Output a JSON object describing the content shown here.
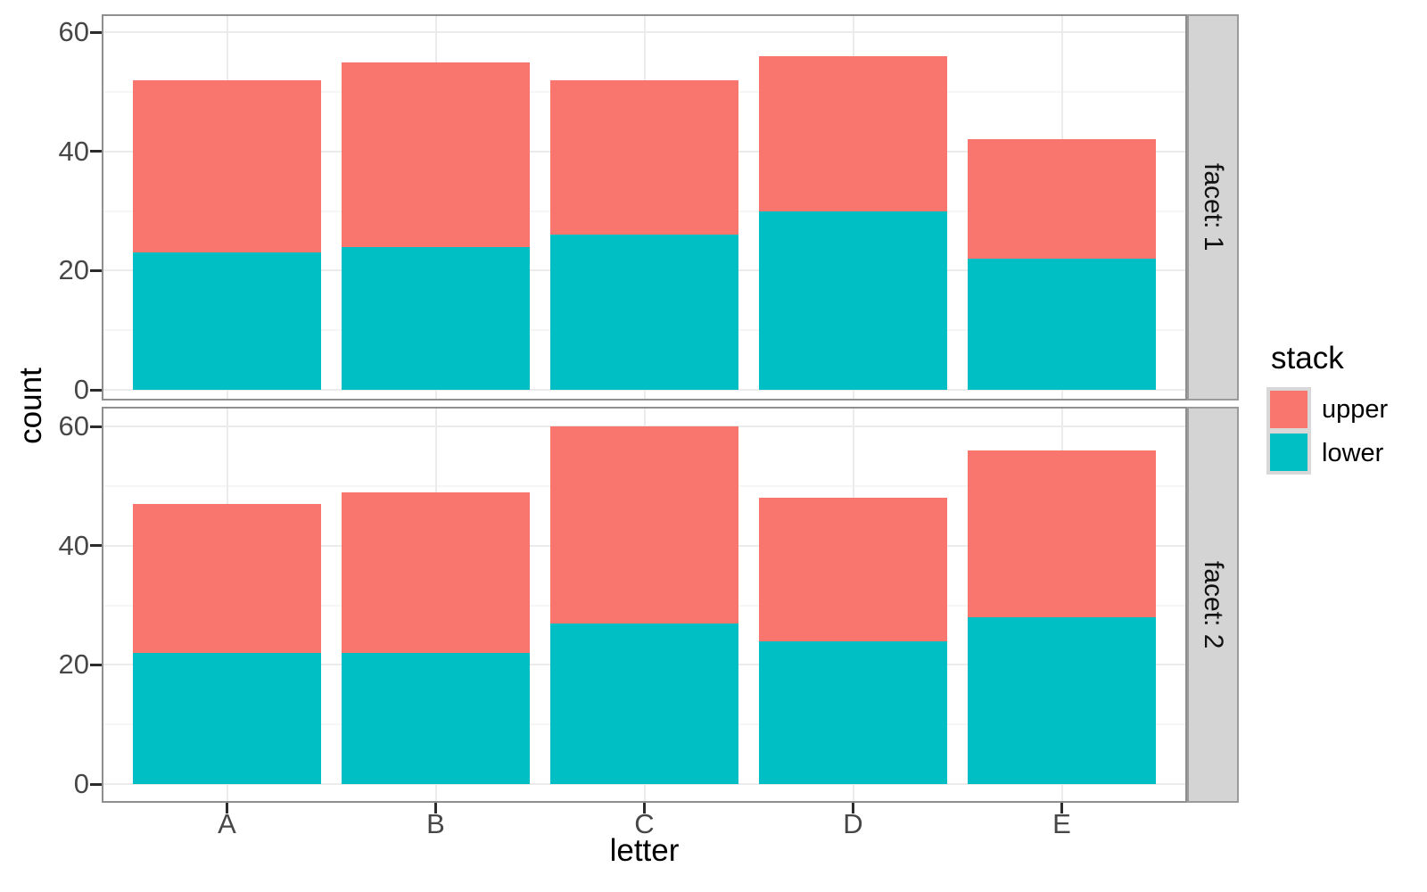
{
  "chart_data": {
    "type": "bar",
    "stacked": true,
    "title": "",
    "xlabel": "letter",
    "ylabel": "count",
    "categories": [
      "A",
      "B",
      "C",
      "D",
      "E"
    ],
    "yticks": [
      0,
      20,
      40,
      60
    ],
    "yticks_minor": [
      10,
      30,
      50
    ],
    "ylim": [
      0,
      63
    ],
    "grid": true,
    "legend": {
      "title": "stack",
      "position": "right",
      "entries": [
        {
          "label": "upper",
          "color": "#F8766D"
        },
        {
          "label": "lower",
          "color": "#00BFC4"
        }
      ]
    },
    "facets": [
      {
        "label": "facet: 1",
        "series": [
          {
            "name": "lower",
            "color": "#00BFC4",
            "values": [
              23,
              24,
              26,
              30,
              22
            ]
          },
          {
            "name": "upper",
            "color": "#F8766D",
            "values": [
              29,
              31,
              26,
              26,
              20
            ]
          }
        ],
        "stack_totals": [
          52,
          55,
          52,
          56,
          42
        ]
      },
      {
        "label": "facet: 2",
        "series": [
          {
            "name": "lower",
            "color": "#00BFC4",
            "values": [
              22,
              22,
              27,
              24,
              28
            ]
          },
          {
            "name": "upper",
            "color": "#F8766D",
            "values": [
              25,
              27,
              33,
              24,
              28
            ]
          }
        ],
        "stack_totals": [
          47,
          49,
          60,
          48,
          56
        ]
      }
    ],
    "colors": {
      "upper": "#F8766D",
      "lower": "#00BFC4"
    },
    "panel_style": {
      "strip_bg": "#d4d4d4",
      "panel_border": "#8f8f8f",
      "grid_major": "#ebebeb",
      "grid_minor": "#f6f6f6"
    }
  }
}
